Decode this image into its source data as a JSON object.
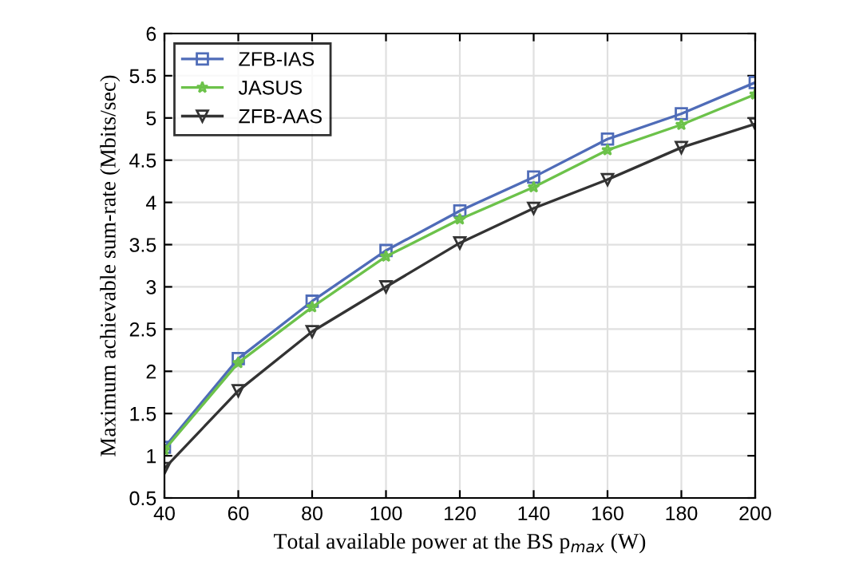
{
  "chart_data": {
    "type": "line",
    "xlabel": "Total available power at the BS p$_{max}$ (W)",
    "ylabel": "Maximum achievable sum-rate (Mbits/sec)",
    "x": [
      40,
      60,
      80,
      100,
      120,
      140,
      160,
      180,
      200
    ],
    "series": [
      {
        "name": "ZFB-IAS",
        "color": "#4f6cb8",
        "marker": "square",
        "values": [
          1.1,
          2.15,
          2.83,
          3.43,
          3.9,
          4.3,
          4.75,
          5.05,
          5.42
        ]
      },
      {
        "name": "JASUS",
        "color": "#6cc24a",
        "marker": "star",
        "values": [
          1.07,
          2.1,
          2.76,
          3.36,
          3.8,
          4.18,
          4.62,
          4.92,
          5.28
        ]
      },
      {
        "name": "ZFB-AAS",
        "color": "#333333",
        "marker": "triangle",
        "values": [
          0.85,
          1.77,
          2.47,
          3.0,
          3.52,
          3.93,
          4.27,
          4.65,
          4.93
        ]
      }
    ],
    "xlim": [
      40,
      200
    ],
    "ylim": [
      0.5,
      6
    ],
    "xticks": [
      40,
      60,
      80,
      100,
      120,
      140,
      160,
      180,
      200
    ],
    "yticks": [
      0.5,
      1,
      1.5,
      2,
      2.5,
      3,
      3.5,
      4,
      4.5,
      5,
      5.5,
      6
    ],
    "grid": true,
    "legend": "top left",
    "line_style": "solid"
  }
}
